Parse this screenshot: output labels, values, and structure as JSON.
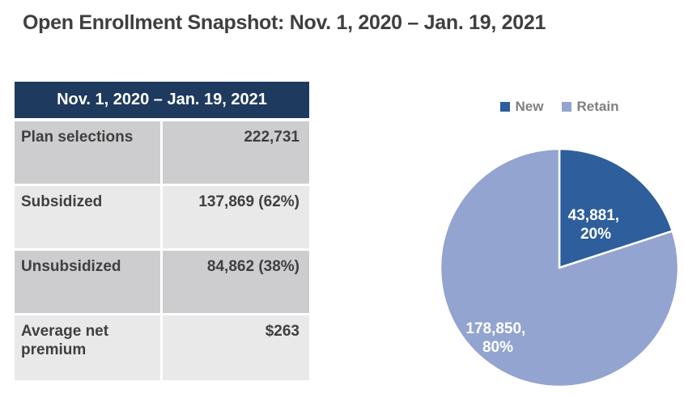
{
  "page": {
    "title": "Open Enrollment Snapshot: Nov. 1, 2020 – Jan. 19, 2021"
  },
  "table": {
    "header": "Nov. 1, 2020 – Jan. 19, 2021",
    "rows": [
      {
        "label": "Plan selections",
        "value": "222,731"
      },
      {
        "label": "Subsidized",
        "value": "137,869 (62%)"
      },
      {
        "label": "Unsubsidized",
        "value": "84,862 (38%)"
      },
      {
        "label": "Average net premium",
        "value": "$263"
      }
    ]
  },
  "chart_data": {
    "type": "pie",
    "title": "",
    "legend_position": "top",
    "start_angle_deg": -90,
    "direction": "clockwise",
    "slices": [
      {
        "name": "New",
        "value": 43881,
        "percent": 20,
        "color": "#2e5e9c",
        "label_lines": [
          "43,881,",
          "20%"
        ]
      },
      {
        "name": "Retain",
        "value": 178850,
        "percent": 80,
        "color": "#92a4cf",
        "label_lines": [
          "178,850,",
          "80%"
        ]
      }
    ],
    "slice_border_color": "#ffffff"
  },
  "colors": {
    "header_bg": "#1e3a5e",
    "row_dark": "#cdcdcf",
    "row_light": "#e9e9ea",
    "title_text": "#3f3f3f",
    "table_text": "#3f3f3f",
    "legend_text": "#7f7f7f"
  }
}
